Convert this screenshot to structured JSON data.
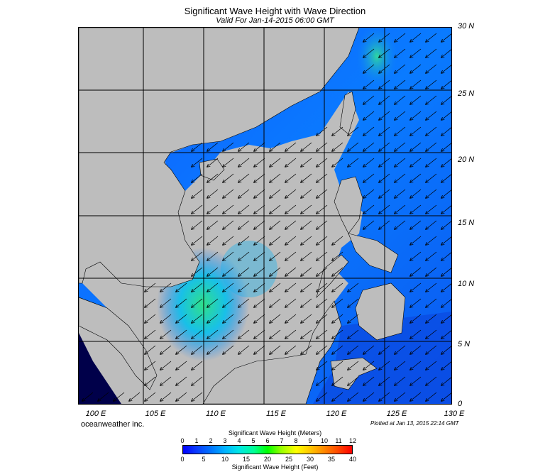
{
  "title": "Significant Wave Height with Wave Direction",
  "subtitle": "Valid For Jan-14-2015 06:00 GMT",
  "lat_labels": [
    "30 N",
    "25 N",
    "20 N",
    "15 N",
    "10 N",
    "5 N",
    "0"
  ],
  "lon_labels": [
    "100 E",
    "105 E",
    "110 E",
    "115 E",
    "120 E",
    "125 E",
    "130 E"
  ],
  "brand": "oceanweather inc.",
  "plotted": "Plotted at Jan 13, 2015 22:14 GMT",
  "colorbar": {
    "title_meters": "Significant Wave Height (Meters)",
    "meters_ticks": [
      "0",
      "1",
      "2",
      "3",
      "4",
      "5",
      "6",
      "7",
      "8",
      "9",
      "10",
      "11",
      "12"
    ],
    "feet_ticks": [
      "0",
      "5",
      "10",
      "15",
      "20",
      "25",
      "30",
      "35",
      "40"
    ],
    "title_feet": "Significant Wave Height (Feet)"
  },
  "map": {
    "lon_range": [
      99,
      130
    ],
    "lat_range": [
      0,
      30
    ],
    "land_color": "#bdbdbd",
    "wave_direction": "northeast (flowing toward southwest)"
  }
}
